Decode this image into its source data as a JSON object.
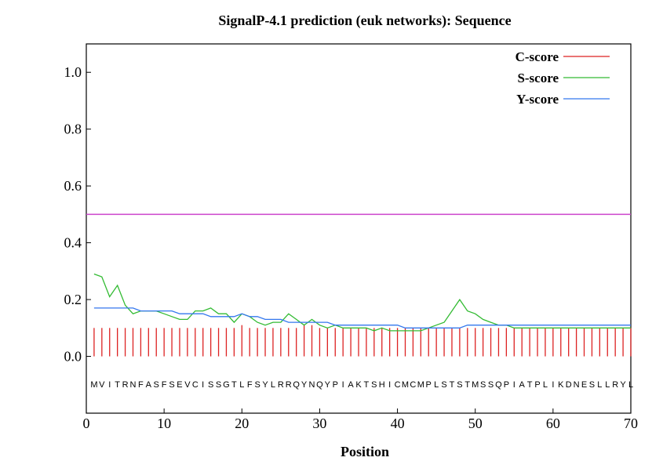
{
  "chart_data": {
    "type": "line",
    "title": "SignalP-4.1 prediction (euk networks): Sequence",
    "xlabel": "Position",
    "ylabel": "",
    "xlim": [
      0,
      70
    ],
    "ylim": [
      -0.2,
      1.1
    ],
    "xticks": [
      0,
      10,
      20,
      30,
      40,
      50,
      60,
      70
    ],
    "yticks": [
      0.0,
      0.2,
      0.4,
      0.6,
      0.8,
      1.0
    ],
    "ytick_labels": [
      "0.0",
      "0.2",
      "0.4",
      "0.6",
      "0.8",
      "1.0"
    ],
    "grid": false,
    "legend_position": "top-right",
    "sequence": "MVITRNFASFSEVCISSGTLFSYLRRQYNQYPIAKTSHICMCMPLSTSTMSSQPIATPLIKDNESLLRYL",
    "cutoff": 0.5,
    "cutoff_color": "#cc44cc",
    "series": [
      {
        "name": "C-score",
        "kind": "impulse",
        "color": "#dd2222",
        "x": [
          1,
          2,
          3,
          4,
          5,
          6,
          7,
          8,
          9,
          10,
          11,
          12,
          13,
          14,
          15,
          16,
          17,
          18,
          19,
          20,
          21,
          22,
          23,
          24,
          25,
          26,
          27,
          28,
          29,
          30,
          31,
          32,
          33,
          34,
          35,
          36,
          37,
          38,
          39,
          40,
          41,
          42,
          43,
          44,
          45,
          46,
          47,
          48,
          49,
          50,
          51,
          52,
          53,
          54,
          55,
          56,
          57,
          58,
          59,
          60,
          61,
          62,
          63,
          64,
          65,
          66,
          67,
          68,
          69,
          70
        ],
        "values": [
          0.1,
          0.1,
          0.1,
          0.1,
          0.1,
          0.1,
          0.1,
          0.1,
          0.1,
          0.1,
          0.1,
          0.1,
          0.1,
          0.1,
          0.1,
          0.1,
          0.1,
          0.1,
          0.1,
          0.11,
          0.1,
          0.1,
          0.1,
          0.1,
          0.1,
          0.1,
          0.1,
          0.11,
          0.11,
          0.1,
          0.1,
          0.1,
          0.1,
          0.1,
          0.1,
          0.1,
          0.1,
          0.1,
          0.1,
          0.1,
          0.1,
          0.1,
          0.1,
          0.1,
          0.1,
          0.1,
          0.1,
          0.1,
          0.1,
          0.1,
          0.1,
          0.1,
          0.1,
          0.1,
          0.1,
          0.1,
          0.1,
          0.1,
          0.1,
          0.1,
          0.1,
          0.1,
          0.1,
          0.1,
          0.1,
          0.1,
          0.1,
          0.1,
          0.1,
          0.1
        ]
      },
      {
        "name": "S-score",
        "kind": "line",
        "color": "#33bb33",
        "x": [
          1,
          2,
          3,
          4,
          5,
          6,
          7,
          8,
          9,
          10,
          11,
          12,
          13,
          14,
          15,
          16,
          17,
          18,
          19,
          20,
          21,
          22,
          23,
          24,
          25,
          26,
          27,
          28,
          29,
          30,
          31,
          32,
          33,
          34,
          35,
          36,
          37,
          38,
          39,
          40,
          41,
          42,
          43,
          44,
          45,
          46,
          47,
          48,
          49,
          50,
          51,
          52,
          53,
          54,
          55,
          56,
          57,
          58,
          59,
          60,
          61,
          62,
          63,
          64,
          65,
          66,
          67,
          68,
          69,
          70
        ],
        "values": [
          0.29,
          0.28,
          0.21,
          0.25,
          0.18,
          0.15,
          0.16,
          0.16,
          0.16,
          0.15,
          0.14,
          0.13,
          0.13,
          0.16,
          0.16,
          0.17,
          0.15,
          0.15,
          0.12,
          0.15,
          0.14,
          0.12,
          0.11,
          0.12,
          0.12,
          0.15,
          0.13,
          0.11,
          0.13,
          0.11,
          0.1,
          0.11,
          0.1,
          0.1,
          0.1,
          0.1,
          0.09,
          0.1,
          0.09,
          0.09,
          0.09,
          0.09,
          0.09,
          0.1,
          0.11,
          0.12,
          0.16,
          0.2,
          0.16,
          0.15,
          0.13,
          0.12,
          0.11,
          0.11,
          0.1,
          0.1,
          0.1,
          0.1,
          0.1,
          0.1,
          0.1,
          0.1,
          0.1,
          0.1,
          0.1,
          0.1,
          0.1,
          0.1,
          0.1,
          0.1
        ]
      },
      {
        "name": "Y-score",
        "kind": "line",
        "color": "#3377ee",
        "x": [
          1,
          2,
          3,
          4,
          5,
          6,
          7,
          8,
          9,
          10,
          11,
          12,
          13,
          14,
          15,
          16,
          17,
          18,
          19,
          20,
          21,
          22,
          23,
          24,
          25,
          26,
          27,
          28,
          29,
          30,
          31,
          32,
          33,
          34,
          35,
          36,
          37,
          38,
          39,
          40,
          41,
          42,
          43,
          44,
          45,
          46,
          47,
          48,
          49,
          50,
          51,
          52,
          53,
          54,
          55,
          56,
          57,
          58,
          59,
          60,
          61,
          62,
          63,
          64,
          65,
          66,
          67,
          68,
          69,
          70
        ],
        "values": [
          0.17,
          0.17,
          0.17,
          0.17,
          0.17,
          0.17,
          0.16,
          0.16,
          0.16,
          0.16,
          0.16,
          0.15,
          0.15,
          0.15,
          0.15,
          0.14,
          0.14,
          0.14,
          0.14,
          0.15,
          0.14,
          0.14,
          0.13,
          0.13,
          0.13,
          0.12,
          0.12,
          0.12,
          0.12,
          0.12,
          0.12,
          0.11,
          0.11,
          0.11,
          0.11,
          0.11,
          0.11,
          0.11,
          0.11,
          0.11,
          0.1,
          0.1,
          0.1,
          0.1,
          0.1,
          0.1,
          0.1,
          0.1,
          0.11,
          0.11,
          0.11,
          0.11,
          0.11,
          0.11,
          0.11,
          0.11,
          0.11,
          0.11,
          0.11,
          0.11,
          0.11,
          0.11,
          0.11,
          0.11,
          0.11,
          0.11,
          0.11,
          0.11,
          0.11,
          0.11
        ]
      }
    ]
  }
}
